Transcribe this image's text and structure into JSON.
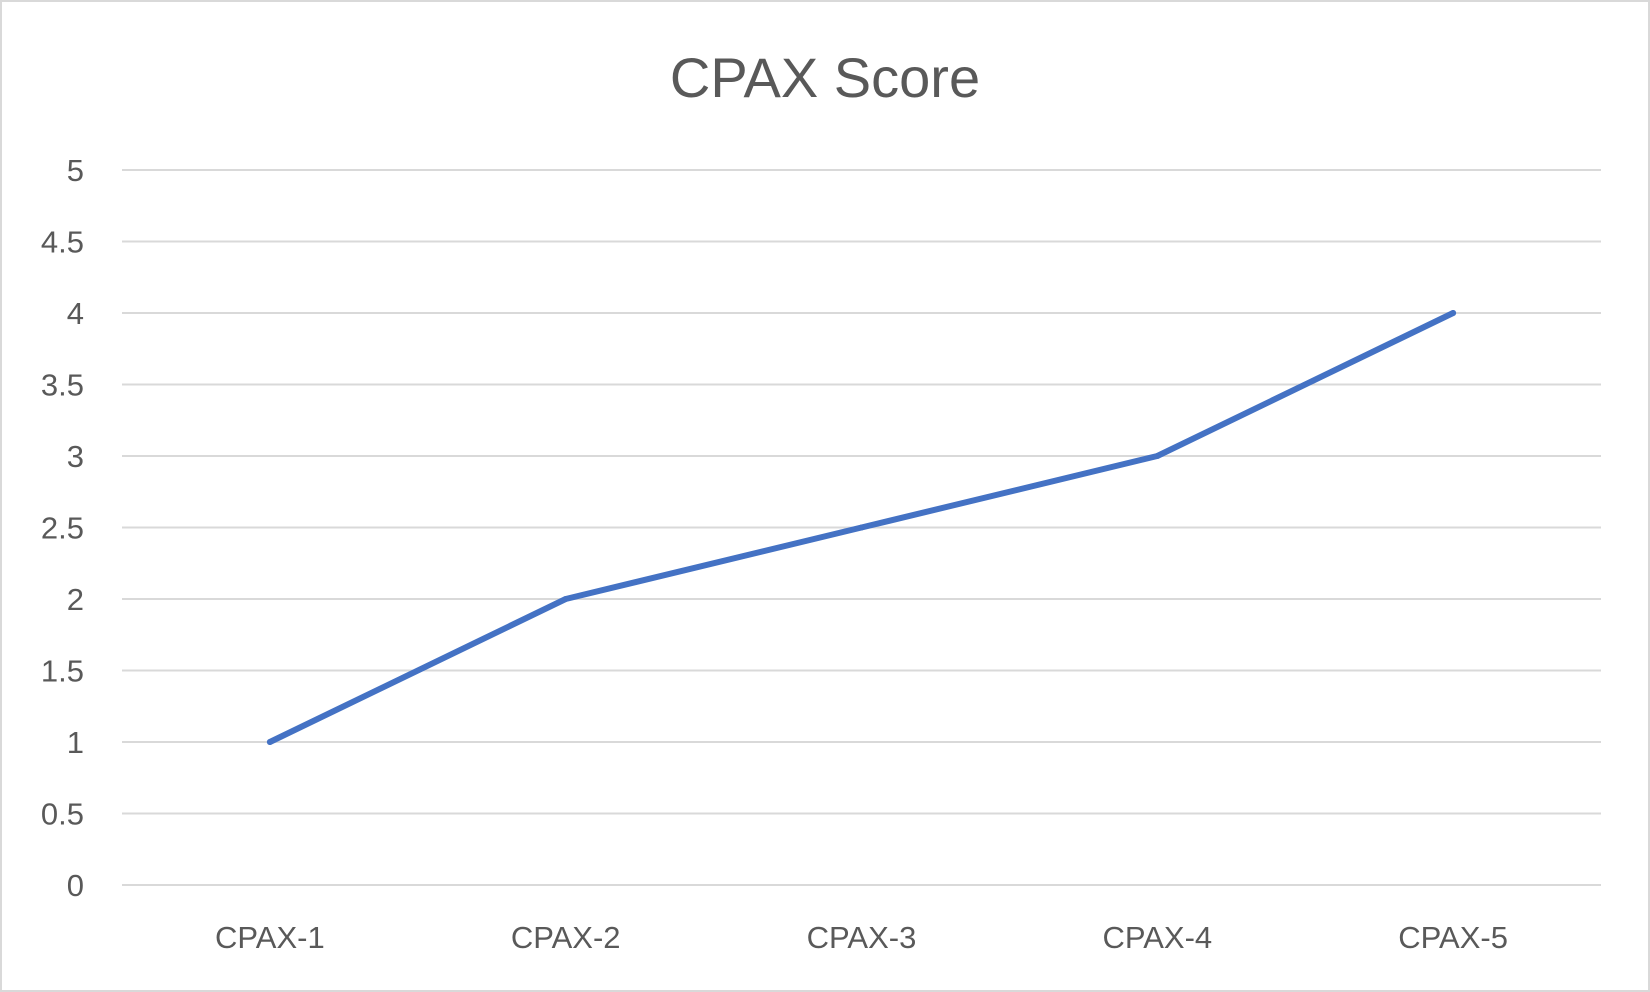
{
  "chart_data": {
    "type": "line",
    "title": "CPAX Score",
    "xlabel": "",
    "ylabel": "",
    "categories": [
      "CPAX-1",
      "CPAX-2",
      "CPAX-3",
      "CPAX-4",
      "CPAX-5"
    ],
    "series": [
      {
        "values": [
          1,
          2,
          2.5,
          3,
          4
        ],
        "color": "#4472C4"
      }
    ],
    "ylim": [
      0,
      5
    ],
    "yticks": [
      "0",
      "0.5",
      "1",
      "1.5",
      "2",
      "2.5",
      "3",
      "3.5",
      "4",
      "4.5",
      "5"
    ],
    "grid": true,
    "legend": "none"
  }
}
